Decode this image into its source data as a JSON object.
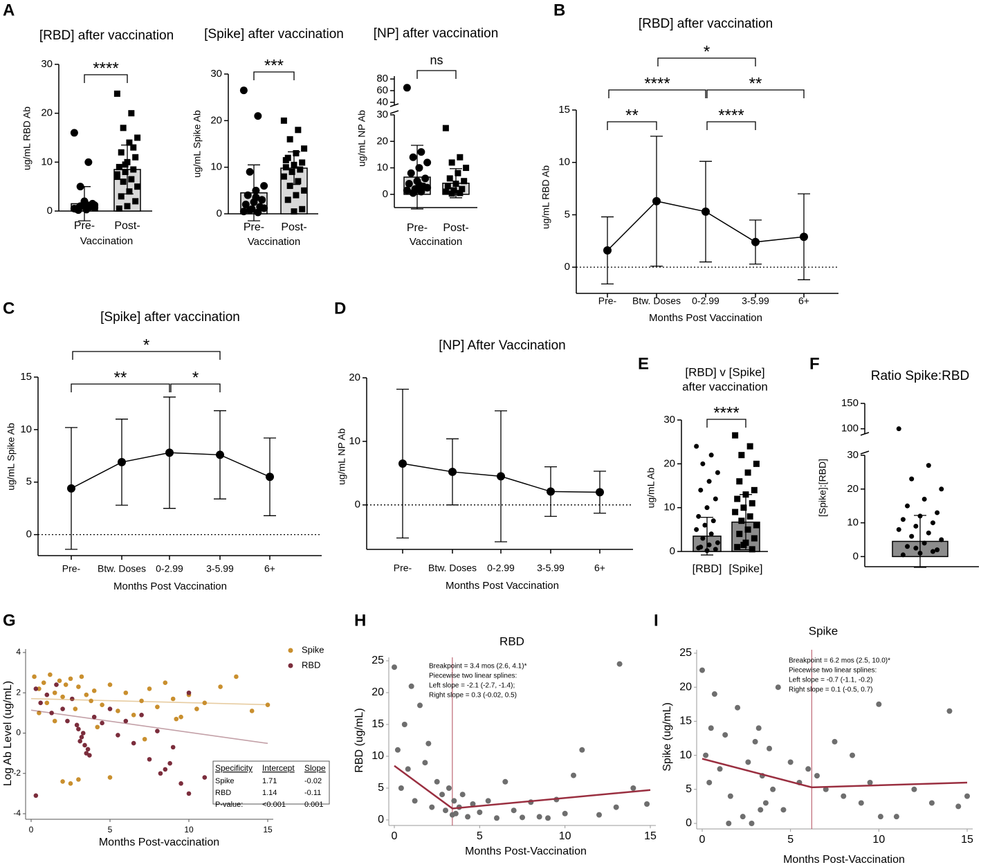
{
  "chart_data": [
    {
      "type": "bar",
      "panel": "A",
      "title": "[RBD] after vaccination",
      "categories": [
        "Pre-",
        "Post-"
      ],
      "xlabel": "Vaccination",
      "ylabel": "ug/mL RBD Ab",
      "values": [
        1.5,
        8.5
      ],
      "errors": [
        3.5,
        5
      ],
      "color": "#d9d9d9",
      "markers": [
        "circle",
        "square"
      ],
      "points": [
        [
          0.5,
          0.8,
          1,
          1.2,
          0.3,
          0.6,
          1.5,
          2,
          0.4,
          0.9,
          1.1,
          16,
          10,
          5,
          0.7,
          1.3,
          0.2
        ],
        [
          24,
          20,
          17,
          15,
          14,
          12,
          11,
          10,
          9,
          8.5,
          8,
          7,
          6.5,
          6,
          5,
          4,
          3,
          2,
          1,
          0.5,
          13,
          9.5,
          7.5
        ]
      ],
      "ylim": [
        0,
        30
      ],
      "yticks": [
        0,
        10,
        20,
        30
      ],
      "brackets": [
        {
          "from": 0,
          "to": 1,
          "label": "****"
        }
      ]
    },
    {
      "type": "bar",
      "title": "[Spike] after vaccination",
      "categories": [
        "Pre-",
        "Post-"
      ],
      "xlabel": "Vaccination",
      "ylabel": "ug/mL Spike Ab",
      "values": [
        4.5,
        9.8
      ],
      "errors": [
        6,
        3.5
      ],
      "color": "#d9d9d9",
      "markers": [
        "circle",
        "square"
      ],
      "points": [
        [
          26.5,
          21,
          9,
          6,
          5,
          4,
          3,
          2.5,
          2,
          1.5,
          1,
          0.5,
          0.3,
          0.8,
          1.2,
          3.5
        ],
        [
          20,
          18,
          16,
          14,
          13,
          12,
          11,
          10.5,
          10,
          9.5,
          9,
          8,
          7,
          6,
          5,
          4,
          3,
          1,
          0.5,
          11.5
        ]
      ],
      "ylim": [
        0,
        30
      ],
      "yticks": [
        0,
        10,
        20,
        30
      ],
      "brackets": [
        {
          "from": 0,
          "to": 1,
          "label": "***"
        }
      ]
    },
    {
      "type": "bar",
      "title": "[NP] after vaccination",
      "categories": [
        "Pre-",
        "Post-"
      ],
      "xlabel": "Vaccination",
      "ylabel": "ug/mL NP Ab",
      "values": [
        6.5,
        4.2
      ],
      "errors": [
        12,
        5.5
      ],
      "color": "#d9d9d9",
      "markers": [
        "circle",
        "square"
      ],
      "points": [
        [
          65,
          16,
          14,
          12,
          10,
          8,
          6,
          5,
          4,
          3,
          2,
          1.5,
          1,
          0.5,
          2.5,
          3.5
        ],
        [
          25,
          14,
          12,
          10,
          8,
          6,
          5,
          4,
          3,
          2,
          1.5,
          1,
          0.5,
          0.3
        ]
      ],
      "ylim": [
        -5,
        30
      ],
      "yticks": [
        0,
        10,
        20,
        30
      ],
      "break": {
        "ylim": [
          35,
          85
        ],
        "yticks": [
          40,
          60,
          80
        ]
      },
      "brackets": [
        {
          "from": 0,
          "to": 1,
          "label": "ns"
        }
      ]
    },
    {
      "type": "line",
      "panel": "B",
      "title": "[RBD] after vaccination",
      "categories": [
        "Pre-",
        "Btw. Doses",
        "0-2.99",
        "3-5.99",
        "6+"
      ],
      "xlabel": "Months Post Vaccination",
      "ylabel": "ug/mL RBD Ab",
      "values": [
        1.6,
        6.3,
        5.3,
        2.4,
        2.9
      ],
      "errors": [
        3.2,
        6.2,
        4.8,
        2.1,
        4.1
      ],
      "ylim": [
        -2.5,
        15
      ],
      "yticks": [
        0,
        5,
        10,
        15
      ],
      "zero_line": true,
      "brackets": [
        {
          "from": 0,
          "to": 1,
          "label": "**"
        },
        {
          "from": 2,
          "to": 3,
          "label": "****"
        },
        {
          "from": 0,
          "to": 2,
          "label": "****"
        },
        {
          "from": 2,
          "to": 4,
          "label": "**"
        },
        {
          "from": 1,
          "to": 3,
          "label": "*"
        }
      ]
    },
    {
      "type": "line",
      "panel": "C",
      "title": "[Spike] after vaccination",
      "categories": [
        "Pre-",
        "Btw. Doses",
        "0-2.99",
        "3-5.99",
        "6+"
      ],
      "xlabel": "Months Post Vaccination",
      "ylabel": "ug/mL Spike Ab",
      "values": [
        4.4,
        6.9,
        7.8,
        7.6,
        5.5
      ],
      "errors": [
        5.8,
        4.1,
        5.3,
        4.2,
        3.7
      ],
      "ylim": [
        -2,
        15
      ],
      "yticks": [
        0,
        5,
        10,
        15
      ],
      "zero_line": true,
      "brackets": [
        {
          "from": 0,
          "to": 2,
          "label": "**"
        },
        {
          "from": 2,
          "to": 3,
          "label": "*"
        },
        {
          "from": 0,
          "to": 3,
          "label": "*"
        }
      ]
    },
    {
      "type": "line",
      "panel": "D",
      "title": "[NP] After Vaccination",
      "categories": [
        "Pre-",
        "Btw. Doses",
        "0-2.99",
        "3-5.99",
        "6+"
      ],
      "xlabel": "Months Post Vaccination",
      "ylabel": "ug/mL NP Ab",
      "values": [
        6.5,
        5.2,
        4.5,
        2.1,
        2.0
      ],
      "errors": [
        11.7,
        5.2,
        10.3,
        3.9,
        3.3
      ],
      "ylim": [
        -7,
        20
      ],
      "yticks": [
        0,
        10,
        20
      ],
      "zero_line": true,
      "brackets": []
    },
    {
      "type": "bar",
      "panel": "E",
      "title": [
        "[RBD] v [Spike]",
        "after vaccination"
      ],
      "categories": [
        "[RBD]",
        "[Spike]"
      ],
      "ylabel": "ug/mL Ab",
      "values": [
        3.5,
        6.7
      ],
      "errors": [
        4.3,
        6.3
      ],
      "color": "#8c8c8c",
      "markers": [
        "circle",
        "square"
      ],
      "points": [
        [
          24,
          22,
          20,
          18,
          16,
          14,
          12,
          10,
          8,
          7,
          6,
          5,
          4,
          3,
          2,
          1.5,
          1,
          0.5,
          0.2,
          0.8
        ],
        [
          26.5,
          24,
          22,
          20,
          18,
          16,
          14,
          13,
          12,
          11,
          10,
          9,
          8,
          7,
          6,
          5,
          4,
          3,
          2,
          1,
          0.5,
          1.5
        ]
      ],
      "ylim": [
        0,
        30
      ],
      "yticks": [
        0,
        10,
        20,
        30
      ],
      "brackets": [
        {
          "from": 0,
          "to": 1,
          "label": "****"
        }
      ]
    },
    {
      "type": "bar",
      "panel": "F",
      "title": "Ratio Spike:RBD",
      "categories": [
        null
      ],
      "ylabel": "[Spike]:[RBD]",
      "values": [
        4.5
      ],
      "errors": [
        7.7
      ],
      "color": "#8c8c8c",
      "markers": [
        "circle"
      ],
      "points": [
        [
          100,
          27,
          23,
          20,
          17,
          15,
          13,
          12,
          11,
          10,
          9,
          8,
          7,
          6,
          5,
          4,
          3,
          2,
          1,
          0.5,
          1.5,
          2.5
        ]
      ],
      "ylim": [
        -3,
        30
      ],
      "yticks": [
        0,
        10,
        20,
        30
      ],
      "break": {
        "ylim": [
          90,
          150
        ],
        "yticks": [
          100,
          150
        ]
      },
      "brackets": []
    },
    {
      "type": "scatter",
      "panel": "G",
      "xlabel": "Months Post-vaccination",
      "ylabel": "Log  Ab Level (ug/mL)",
      "xlim": [
        0,
        15
      ],
      "xticks": [
        0,
        5,
        10,
        15
      ],
      "ylim": [
        -4,
        4
      ],
      "yticks": [
        -4,
        -2,
        0,
        2,
        4
      ],
      "series": [
        {
          "name": "Spike",
          "color": "#c98f2e",
          "x": [
            0.2,
            0.5,
            0.8,
            1,
            1.2,
            1.5,
            1.8,
            2,
            2.2,
            2.5,
            2.8,
            3,
            3.2,
            3.5,
            3.8,
            4,
            4.5,
            5,
            5.5,
            6,
            6.5,
            7,
            7.5,
            8,
            8.5,
            9,
            9.5,
            10,
            10.5,
            11,
            12,
            13,
            14,
            15,
            2,
            2.5,
            3,
            5,
            0.5,
            1.5,
            4.2,
            7.2,
            9.2
          ],
          "values": [
            2.8,
            2.2,
            2.5,
            1.5,
            2.9,
            2.0,
            2.6,
            1.8,
            2.4,
            2.7,
            1.2,
            2.3,
            2.8,
            1.9,
            1.6,
            2.1,
            1.4,
            2.4,
            1.1,
            2.0,
            0.9,
            1.6,
            2.2,
            1.3,
            2.5,
            1.7,
            0.8,
            1.9,
            1.2,
            1.5,
            2.3,
            2.8,
            1.1,
            1.4,
            -2.4,
            -2.5,
            -2.3,
            -2.2,
            1.0,
            0.6,
            0.3,
            -0.3,
            0.7
          ]
        },
        {
          "name": "RBD",
          "color": "#7b2d3c",
          "x": [
            0.3,
            0.6,
            1,
            1.3,
            1.6,
            2,
            2.3,
            2.6,
            3,
            3.2,
            3.4,
            3.5,
            3.6,
            3.3,
            3.1,
            2.9,
            3.7,
            4,
            4.5,
            5,
            5.5,
            6,
            6.5,
            7,
            7.5,
            8,
            8.5,
            9,
            10,
            11,
            0.3,
            8.2,
            8.8,
            9.5,
            10
          ],
          "values": [
            2.2,
            1.5,
            1.9,
            1.0,
            2.4,
            1.2,
            0.6,
            1.7,
            0.2,
            -0.2,
            -0.6,
            -1.0,
            -0.8,
            0.0,
            -0.4,
            0.4,
            -1.1,
            0.8,
            0.5,
            1.2,
            -0.1,
            0.6,
            -0.5,
            0.9,
            -1.3,
            0.1,
            -1.8,
            -0.7,
            2.0,
            -2.2,
            -3.1,
            -2.0,
            -1.5,
            -2.5,
            -3.0
          ]
        }
      ],
      "table": {
        "header": [
          "Specificity",
          "Intercept",
          "Slope"
        ],
        "rows": [
          [
            "Spike",
            1.71,
            -0.02
          ],
          [
            "RBD",
            1.14,
            -0.11
          ],
          [
            "P-value:",
            "<0.001",
            0.001
          ]
        ]
      }
    },
    {
      "type": "scatter",
      "panel": "H",
      "title": "RBD",
      "xlabel": "Months Post-Vaccination",
      "ylabel": "RBD (ug/mL)",
      "xlim": [
        0,
        15
      ],
      "xticks": [
        0,
        5,
        10,
        15
      ],
      "ylim": [
        0,
        25
      ],
      "yticks": [
        0,
        5,
        10,
        15,
        20,
        25
      ],
      "color": "#6e6e6e",
      "x": [
        0,
        0.2,
        0.4,
        0.6,
        0.8,
        1,
        1.2,
        1.5,
        1.8,
        2,
        2.2,
        2.5,
        2.8,
        3,
        3.2,
        3.4,
        3.5,
        3.6,
        3.8,
        4,
        4.3,
        4.6,
        5,
        5.5,
        6,
        6.5,
        7,
        7.5,
        8,
        8.5,
        9,
        9.5,
        10,
        10.5,
        11,
        12,
        13,
        13.2,
        14,
        14.8
      ],
      "values": [
        24,
        11,
        5,
        15,
        8,
        21,
        3,
        18,
        9,
        12,
        2,
        6,
        4,
        1.5,
        5,
        0.8,
        3,
        1,
        2,
        4,
        0.5,
        2.5,
        1.2,
        3,
        0.3,
        6,
        1.5,
        0.4,
        2.8,
        0.5,
        0.3,
        3.2,
        1,
        7,
        11,
        0.8,
        2,
        24.5,
        5,
        2.5
      ],
      "breakpoint": 3.4,
      "fit": {
        "x": [
          0,
          3.4,
          15
        ],
        "y": [
          8.5,
          1.8,
          4.7
        ]
      },
      "annotation": [
        "Breakpoint = 3.4 mos (2.6, 4.1)*",
        "Piecewise two linear splines:",
        "Left slope = -2.1 (-2.7, -1.4);",
        "Right slope = 0.3 (-0.02, 0.5)"
      ]
    },
    {
      "type": "scatter",
      "panel": "I",
      "title": "Spike",
      "xlabel": "Months Post-Vaccination",
      "ylabel": "Spike (ug/mL)",
      "xlim": [
        0,
        15
      ],
      "xticks": [
        0,
        5,
        10,
        15
      ],
      "ylim": [
        0,
        25
      ],
      "yticks": [
        0,
        5,
        10,
        15,
        20,
        25
      ],
      "color": "#6e6e6e",
      "x": [
        0,
        0.2,
        0.4,
        0.7,
        1,
        1.3,
        1.6,
        2,
        2.3,
        2.6,
        3,
        3.2,
        3.4,
        3.6,
        3.8,
        4,
        4.3,
        4.6,
        5,
        5.5,
        6,
        6.5,
        7,
        7.5,
        8,
        8.5,
        9,
        9.5,
        10,
        11,
        12,
        13,
        14,
        14.5,
        15,
        1.5,
        2.8,
        3.3,
        0.5,
        10.1
      ],
      "values": [
        22.5,
        10,
        6,
        19,
        8,
        13,
        4,
        17,
        1,
        9,
        12,
        14,
        7,
        3,
        11,
        5,
        20,
        2,
        9,
        6,
        8,
        7,
        5,
        12,
        4,
        10,
        3,
        6,
        17.5,
        1,
        5,
        3,
        16.5,
        2.5,
        4,
        0,
        0,
        2,
        14,
        1
      ],
      "breakpoint": 6.2,
      "fit": {
        "x": [
          0,
          6.2,
          15
        ],
        "y": [
          9.5,
          5.3,
          6.0
        ]
      },
      "annotation": [
        "Breakpoint = 6.2 mos (2.5, 10.0)*",
        "Piecewise two linear splines:",
        "Left slope = -0.7 (-1.1, -0.2)",
        "Right slope = 0.1 (-0.5, 0.7)"
      ]
    }
  ]
}
